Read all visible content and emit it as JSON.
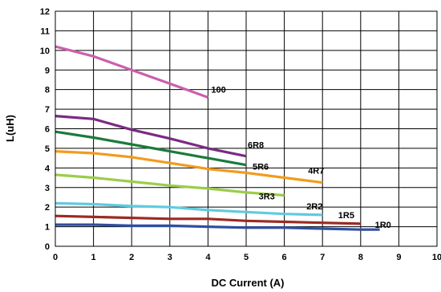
{
  "chart_data": {
    "type": "line",
    "title": "",
    "xlabel": "DC Current (A)",
    "ylabel": "L(uH)",
    "xlim": [
      0,
      10
    ],
    "ylim": [
      0,
      12
    ],
    "x_ticks": [
      "0",
      "1",
      "2",
      "3",
      "4",
      "5",
      "6",
      "7",
      "8",
      "9",
      "10"
    ],
    "y_ticks": [
      "0",
      "1",
      "2",
      "3",
      "4",
      "5",
      "6",
      "7",
      "8",
      "9",
      "10",
      "11",
      "12"
    ],
    "grid": true,
    "legend": "none",
    "series": [
      {
        "name": "100",
        "color": "#cc5fae",
        "x": [
          0,
          1,
          2,
          3,
          4
        ],
        "y": [
          10.2,
          9.7,
          9.0,
          8.3,
          7.6
        ]
      },
      {
        "name": "6R8",
        "color": "#7b2a83",
        "x": [
          0,
          1,
          2,
          3,
          4,
          5
        ],
        "y": [
          6.65,
          6.5,
          5.95,
          5.5,
          5.0,
          4.6
        ]
      },
      {
        "name": "5R6",
        "color": "#1c7a3c",
        "x": [
          0,
          1,
          2,
          3,
          4,
          5
        ],
        "y": [
          5.85,
          5.55,
          5.2,
          4.85,
          4.5,
          4.15
        ]
      },
      {
        "name": "4R7",
        "color": "#f39b1c",
        "x": [
          0,
          1,
          2,
          3,
          4,
          5,
          6,
          7
        ],
        "y": [
          4.85,
          4.75,
          4.55,
          4.25,
          3.95,
          3.75,
          3.5,
          3.25
        ]
      },
      {
        "name": "3R3",
        "color": "#9ccc4a",
        "x": [
          0,
          1,
          2,
          3,
          4,
          5,
          6
        ],
        "y": [
          3.65,
          3.5,
          3.3,
          3.1,
          2.95,
          2.75,
          2.6
        ]
      },
      {
        "name": "2R2",
        "color": "#5ecbe0",
        "x": [
          0,
          1,
          2,
          3,
          4,
          5,
          6,
          7
        ],
        "y": [
          2.2,
          2.15,
          2.05,
          2.0,
          1.85,
          1.75,
          1.65,
          1.6
        ]
      },
      {
        "name": "1R5",
        "color": "#9b2b23",
        "x": [
          0,
          1,
          2,
          3,
          4,
          5,
          6,
          7,
          8
        ],
        "y": [
          1.55,
          1.5,
          1.45,
          1.4,
          1.4,
          1.3,
          1.25,
          1.2,
          1.15
        ]
      },
      {
        "name": "1R0",
        "color": "#2f4fa0",
        "x": [
          0,
          1,
          2,
          3,
          4,
          5,
          6,
          7,
          8,
          8.5
        ],
        "y": [
          1.1,
          1.1,
          1.05,
          1.05,
          1.0,
          0.95,
          0.95,
          0.9,
          0.85,
          0.85
        ]
      }
    ]
  }
}
